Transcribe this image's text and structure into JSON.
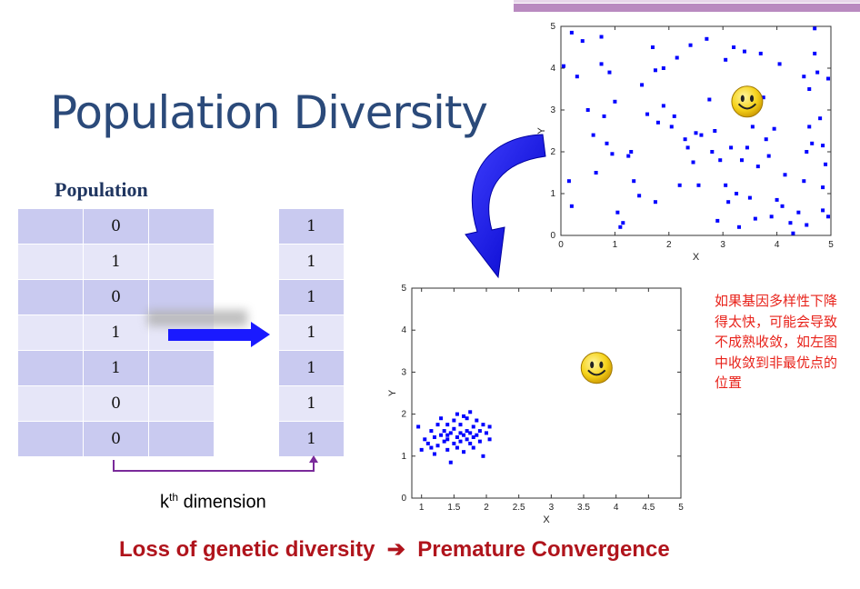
{
  "slide": {
    "title": "Population Diversity",
    "population_label": "Population",
    "population_column": [
      "0",
      "1",
      "0",
      "1",
      "1",
      "0",
      "0"
    ],
    "result_column": [
      "1",
      "1",
      "1",
      "1",
      "1",
      "1",
      "1"
    ],
    "dimension_label_base": "k",
    "dimension_label_sup": "th",
    "dimension_label_rest": " dimension",
    "bottom_caption": {
      "left": "Loss of genetic diversity",
      "arrow": "➔",
      "right": "Premature Convergence"
    },
    "chinese_note": "如果基因多样性下降得太快，可能会导致不成熟收敛，如左图中收敛到非最优点的位置",
    "colors": {
      "title": "#2b4a7a",
      "caption": "#b0141c",
      "note": "#e8231b",
      "points": "#0000ff",
      "arrow": "#1a1aff"
    },
    "icons": [
      "smiley-icon",
      "curved-arrow-icon",
      "right-arrow-icon",
      "bracket-arrow-icon"
    ]
  },
  "chart_data": [
    {
      "type": "scatter",
      "description_key": "diverse",
      "xlabel": "X",
      "ylabel": "Y",
      "xlim": [
        0,
        5
      ],
      "ylim": [
        0,
        5
      ],
      "xticks": [
        "0",
        "1",
        "2",
        "3",
        "4",
        "5"
      ],
      "yticks": [
        "0",
        "1",
        "2",
        "3",
        "4",
        "5"
      ],
      "optimum": [
        3.45,
        3.2
      ],
      "points": [
        [
          0.05,
          4.05
        ],
        [
          0.2,
          4.85
        ],
        [
          0.3,
          3.8
        ],
        [
          0.15,
          1.3
        ],
        [
          0.2,
          0.7
        ],
        [
          0.4,
          4.65
        ],
        [
          0.5,
          3.0
        ],
        [
          0.6,
          2.4
        ],
        [
          0.65,
          1.5
        ],
        [
          0.75,
          4.75
        ],
        [
          0.75,
          4.1
        ],
        [
          0.8,
          2.85
        ],
        [
          0.85,
          2.2
        ],
        [
          0.9,
          3.9
        ],
        [
          0.95,
          1.95
        ],
        [
          1.0,
          3.2
        ],
        [
          1.05,
          0.55
        ],
        [
          1.1,
          0.2
        ],
        [
          1.15,
          0.3
        ],
        [
          1.25,
          1.9
        ],
        [
          1.3,
          2.0
        ],
        [
          1.35,
          1.3
        ],
        [
          1.45,
          0.95
        ],
        [
          1.5,
          3.6
        ],
        [
          1.6,
          2.9
        ],
        [
          1.7,
          4.5
        ],
        [
          1.75,
          0.8
        ],
        [
          1.75,
          3.95
        ],
        [
          1.8,
          2.7
        ],
        [
          1.9,
          3.1
        ],
        [
          1.9,
          4.0
        ],
        [
          2.05,
          2.6
        ],
        [
          2.1,
          2.85
        ],
        [
          2.15,
          4.25
        ],
        [
          2.2,
          1.2
        ],
        [
          2.3,
          2.3
        ],
        [
          2.35,
          2.1
        ],
        [
          2.4,
          4.55
        ],
        [
          2.45,
          1.75
        ],
        [
          2.5,
          2.45
        ],
        [
          2.55,
          1.2
        ],
        [
          2.6,
          2.4
        ],
        [
          2.7,
          4.7
        ],
        [
          2.75,
          3.25
        ],
        [
          2.8,
          2.0
        ],
        [
          2.85,
          2.5
        ],
        [
          2.9,
          0.35
        ],
        [
          2.95,
          1.8
        ],
        [
          3.05,
          4.2
        ],
        [
          3.05,
          1.2
        ],
        [
          3.1,
          0.8
        ],
        [
          3.15,
          2.1
        ],
        [
          3.2,
          4.5
        ],
        [
          3.25,
          1.0
        ],
        [
          3.3,
          0.2
        ],
        [
          3.35,
          1.8
        ],
        [
          3.4,
          4.4
        ],
        [
          3.45,
          2.1
        ],
        [
          3.5,
          0.9
        ],
        [
          3.55,
          2.6
        ],
        [
          3.6,
          0.4
        ],
        [
          3.65,
          1.65
        ],
        [
          3.7,
          4.35
        ],
        [
          3.75,
          3.3
        ],
        [
          3.8,
          2.3
        ],
        [
          3.85,
          1.9
        ],
        [
          3.9,
          0.45
        ],
        [
          3.95,
          2.55
        ],
        [
          4.0,
          0.85
        ],
        [
          4.05,
          4.1
        ],
        [
          4.1,
          0.7
        ],
        [
          4.15,
          1.45
        ],
        [
          4.25,
          0.3
        ],
        [
          4.3,
          0.05
        ],
        [
          4.4,
          0.55
        ],
        [
          4.5,
          3.8
        ],
        [
          4.5,
          1.3
        ],
        [
          4.55,
          0.25
        ],
        [
          4.6,
          3.5
        ],
        [
          4.6,
          2.6
        ],
        [
          4.65,
          2.2
        ],
        [
          4.7,
          4.35
        ],
        [
          4.75,
          3.9
        ],
        [
          4.8,
          2.8
        ],
        [
          4.85,
          0.6
        ],
        [
          4.85,
          1.15
        ],
        [
          4.9,
          1.7
        ],
        [
          4.95,
          0.45
        ],
        [
          4.95,
          3.75
        ],
        [
          4.7,
          4.95
        ],
        [
          4.55,
          2.0
        ],
        [
          4.85,
          2.15
        ]
      ]
    },
    {
      "type": "scatter",
      "description_key": "converged",
      "xlabel": "X",
      "ylabel": "Y",
      "xlim": [
        0.85,
        5
      ],
      "ylim": [
        0,
        5
      ],
      "xticks": [
        "1",
        "1.5",
        "2",
        "2.5",
        "3",
        "3.5",
        "4",
        "4.5",
        "5"
      ],
      "yticks": [
        "0",
        "1",
        "2",
        "3",
        "4",
        "5"
      ],
      "optimum": [
        3.7,
        3.1
      ],
      "points": [
        [
          0.95,
          1.7
        ],
        [
          1.0,
          1.15
        ],
        [
          1.05,
          1.4
        ],
        [
          1.1,
          1.3
        ],
        [
          1.15,
          1.2
        ],
        [
          1.15,
          1.6
        ],
        [
          1.2,
          1.45
        ],
        [
          1.25,
          1.75
        ],
        [
          1.25,
          1.25
        ],
        [
          1.3,
          1.5
        ],
        [
          1.3,
          1.9
        ],
        [
          1.35,
          1.35
        ],
        [
          1.35,
          1.6
        ],
        [
          1.4,
          1.4
        ],
        [
          1.4,
          1.75
        ],
        [
          1.4,
          1.15
        ],
        [
          1.45,
          0.85
        ],
        [
          1.45,
          1.55
        ],
        [
          1.5,
          1.3
        ],
        [
          1.5,
          1.65
        ],
        [
          1.5,
          1.85
        ],
        [
          1.55,
          1.45
        ],
        [
          1.55,
          2.0
        ],
        [
          1.55,
          1.2
        ],
        [
          1.6,
          1.55
        ],
        [
          1.6,
          1.35
        ],
        [
          1.6,
          1.75
        ],
        [
          1.65,
          1.5
        ],
        [
          1.65,
          1.1
        ],
        [
          1.7,
          1.6
        ],
        [
          1.7,
          1.4
        ],
        [
          1.7,
          1.9
        ],
        [
          1.75,
          1.3
        ],
        [
          1.75,
          1.55
        ],
        [
          1.75,
          2.05
        ],
        [
          1.8,
          1.45
        ],
        [
          1.8,
          1.7
        ],
        [
          1.8,
          1.2
        ],
        [
          1.85,
          1.5
        ],
        [
          1.85,
          1.85
        ],
        [
          1.9,
          1.35
        ],
        [
          1.9,
          1.6
        ],
        [
          1.95,
          1.75
        ],
        [
          1.95,
          1.0
        ],
        [
          2.0,
          1.55
        ],
        [
          2.05,
          1.7
        ],
        [
          2.05,
          1.4
        ],
        [
          1.2,
          1.05
        ],
        [
          1.65,
          1.95
        ],
        [
          1.4,
          1.5
        ]
      ]
    }
  ]
}
